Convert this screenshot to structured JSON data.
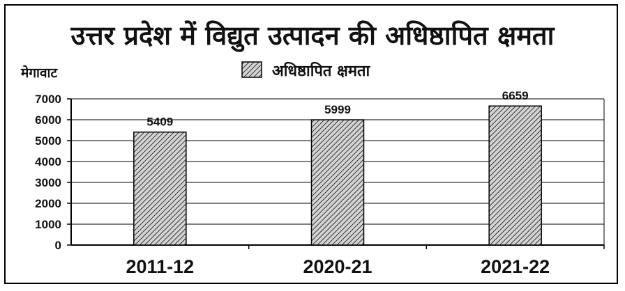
{
  "chart_data": {
    "type": "bar",
    "title": "उत्तर प्रदेश में विद्युत उत्पादन की अधिष्ठापित क्षमता",
    "ylabel": "मेगावाट",
    "xlabel": "",
    "categories": [
      "2011-12",
      "2020-21",
      "2021-22"
    ],
    "series": [
      {
        "name": "अधिष्ठापित क्षमता",
        "values": [
          5409,
          5999,
          6659
        ]
      }
    ],
    "data_labels": [
      "5409",
      "5999",
      "6659"
    ],
    "yticks": [
      "0",
      "1000",
      "2000",
      "3000",
      "4000",
      "5000",
      "6000",
      "7000"
    ],
    "ylim": [
      0,
      7000
    ],
    "grid": true,
    "legend_position": "top-center",
    "colors": {
      "bar_fill": "#d4d4d4",
      "bar_hatch": "#333333",
      "axis": "#000000",
      "grid": "#000000"
    }
  }
}
